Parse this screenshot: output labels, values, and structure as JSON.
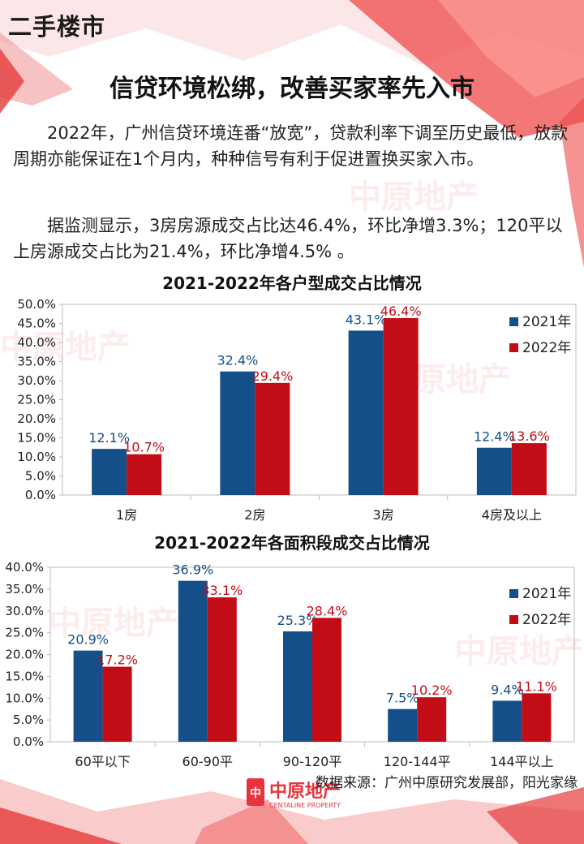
{
  "header": {
    "section_tag": "二手楼市",
    "headline": "信贷环境松绑，改善买家率先入市"
  },
  "body": {
    "paragraph1": "2022年，广州信贷环境连番“放宽”，贷款利率下调至历史最低，放款周期亦能保证在1个月内，种种信号有利于促进置换买家入市。",
    "paragraph2": "据监测显示，3房房源成交占比达46.4%，环比净增3.3%；120平以上房源成交占比为21.4%，环比净增4.5% 。"
  },
  "colors": {
    "series_2021": "#144f8a",
    "series_2022": "#c30d16",
    "accent": "#e8323c"
  },
  "watermark": {
    "cn": "中原地产",
    "en": "CENTALINE PROPERTY"
  },
  "logo": {
    "cn": "中原地产",
    "en": "CENTALINE PROPERTY",
    "badge_icon": "centaline-badge-icon"
  },
  "footer": {
    "source": "数据来源：广州中原研究发展部，阳光家缘"
  },
  "chart_data": [
    {
      "type": "bar",
      "title": "2021-2022年各户型成交占比情况",
      "categories": [
        "1房",
        "2房",
        "3房",
        "4房及以上"
      ],
      "series": [
        {
          "name": "2021年",
          "values": [
            12.1,
            32.4,
            43.1,
            12.4
          ],
          "labels": [
            "12.1%",
            "32.4%",
            "43.1%",
            "12.4%"
          ]
        },
        {
          "name": "2022年",
          "values": [
            10.7,
            29.4,
            46.4,
            13.6
          ],
          "labels": [
            "10.7%",
            "29.4%",
            "46.4%",
            "13.6%"
          ]
        }
      ],
      "ylim": [
        0,
        50
      ],
      "yticks": [
        "0.0%",
        "5.0%",
        "10.0%",
        "15.0%",
        "20.0%",
        "25.0%",
        "30.0%",
        "35.0%",
        "40.0%",
        "45.0%",
        "50.0%"
      ],
      "legend_position": "right",
      "grid": false
    },
    {
      "type": "bar",
      "title": "2021-2022年各面积段成交占比情况",
      "categories": [
        "60平以下",
        "60-90平",
        "90-120平",
        "120-144平",
        "144平以上"
      ],
      "series": [
        {
          "name": "2021年",
          "values": [
            20.9,
            36.9,
            25.3,
            7.5,
            9.4
          ],
          "labels": [
            "20.9%",
            "36.9%",
            "25.3%",
            "7.5%",
            "9.4%"
          ]
        },
        {
          "name": "2022年",
          "values": [
            17.2,
            33.1,
            28.4,
            10.2,
            11.1
          ],
          "labels": [
            "17.2%",
            "33.1%",
            "28.4%",
            "10.2%",
            "11.1%"
          ]
        }
      ],
      "ylim": [
        0,
        40
      ],
      "yticks": [
        "0.0%",
        "5.0%",
        "10.0%",
        "15.0%",
        "20.0%",
        "25.0%",
        "30.0%",
        "35.0%",
        "40.0%"
      ],
      "legend_position": "right",
      "grid": false
    }
  ]
}
